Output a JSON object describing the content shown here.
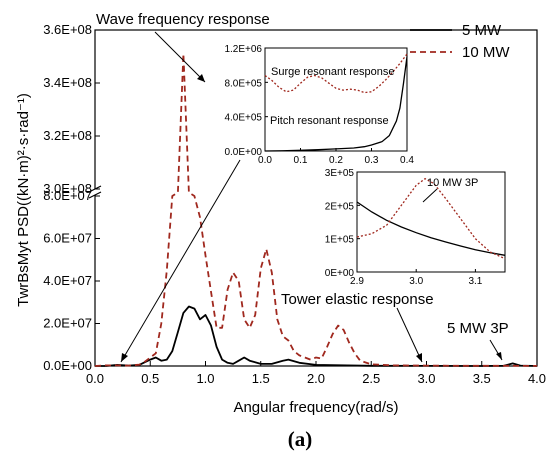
{
  "chart_data": [
    {
      "type": "line",
      "id": "main",
      "xlabel": "Angular frequency(rad/s)",
      "ylabel": "TwrBsMyt PSD((kN·m)²·s·rad⁻¹)",
      "xlim": [
        0,
        4
      ],
      "y_axis_break": {
        "lower": [
          0,
          80000000
        ],
        "upper": [
          300000000,
          360000000
        ]
      },
      "x_ticks": [
        "0.0",
        "0.5",
        "1.0",
        "1.5",
        "2.0",
        "2.5",
        "3.0",
        "3.5",
        "4.0"
      ],
      "y_ticks_lower": [
        "0.0E+00",
        "2.0E+07",
        "4.0E+07",
        "6.0E+07",
        "8.0E+07"
      ],
      "y_ticks_upper": [
        "3.0E+08",
        "3.2E+08",
        "3.4E+08",
        "3.6E+08"
      ],
      "legend": {
        "placement": "top-right",
        "entries": [
          "5 MW",
          "10 MW"
        ]
      },
      "series": [
        {
          "name": "5 MW",
          "style": "solid",
          "color": "#000000",
          "points": [
            [
              0,
              0
            ],
            [
              0.1,
              0
            ],
            [
              0.2,
              500000
            ],
            [
              0.3,
              200000
            ],
            [
              0.4,
              500000
            ],
            [
              0.5,
              3000000
            ],
            [
              0.55,
              4000000
            ],
            [
              0.6,
              2500000
            ],
            [
              0.65,
              3000000
            ],
            [
              0.7,
              7000000
            ],
            [
              0.75,
              16000000
            ],
            [
              0.8,
              25000000
            ],
            [
              0.85,
              28000000
            ],
            [
              0.9,
              27000000
            ],
            [
              0.95,
              22000000
            ],
            [
              1.0,
              24000000
            ],
            [
              1.05,
              19000000
            ],
            [
              1.1,
              9000000
            ],
            [
              1.15,
              3000000
            ],
            [
              1.2,
              1500000
            ],
            [
              1.25,
              1000000
            ],
            [
              1.3,
              2500000
            ],
            [
              1.35,
              4000000
            ],
            [
              1.4,
              2500000
            ],
            [
              1.5,
              1000000
            ],
            [
              1.6,
              1000000
            ],
            [
              1.7,
              2500000
            ],
            [
              1.75,
              3000000
            ],
            [
              1.85,
              1500000
            ],
            [
              2.0,
              500000
            ],
            [
              2.5,
              100000
            ],
            [
              3.0,
              50000
            ],
            [
              3.5,
              20000
            ],
            [
              3.7,
              100000
            ],
            [
              3.78,
              1200000
            ],
            [
              3.85,
              200000
            ],
            [
              4.0,
              20000
            ]
          ]
        },
        {
          "name": "10 MW",
          "style": "dashed",
          "color": "#a0281e",
          "points": [
            [
              0,
              0
            ],
            [
              0.1,
              300000
            ],
            [
              0.2,
              300000
            ],
            [
              0.3,
              200000
            ],
            [
              0.4,
              600000
            ],
            [
              0.45,
              2000000
            ],
            [
              0.5,
              4000000
            ],
            [
              0.55,
              6000000
            ],
            [
              0.6,
              20000000
            ],
            [
              0.65,
              45000000
            ],
            [
              0.7,
              80000000
            ],
            [
              0.75,
              240000000
            ],
            [
              0.8,
              351000000
            ],
            [
              0.85,
              250000000
            ],
            [
              0.9,
              80000000
            ],
            [
              0.95,
              70000000
            ],
            [
              1.0,
              52000000
            ],
            [
              1.05,
              35000000
            ],
            [
              1.1,
              18000000
            ],
            [
              1.15,
              18000000
            ],
            [
              1.2,
              36000000
            ],
            [
              1.25,
              44000000
            ],
            [
              1.3,
              40000000
            ],
            [
              1.35,
              22000000
            ],
            [
              1.4,
              18000000
            ],
            [
              1.45,
              24000000
            ],
            [
              1.5,
              46000000
            ],
            [
              1.55,
              55000000
            ],
            [
              1.6,
              44000000
            ],
            [
              1.65,
              22000000
            ],
            [
              1.7,
              14000000
            ],
            [
              1.75,
              12000000
            ],
            [
              1.8,
              7000000
            ],
            [
              1.85,
              5000000
            ],
            [
              1.9,
              4000000
            ],
            [
              1.95,
              3000000
            ],
            [
              2.0,
              4000000
            ],
            [
              2.05,
              3500000
            ],
            [
              2.1,
              9000000
            ],
            [
              2.15,
              15000000
            ],
            [
              2.2,
              19000000
            ],
            [
              2.25,
              17000000
            ],
            [
              2.3,
              11000000
            ],
            [
              2.35,
              6000000
            ],
            [
              2.4,
              2500000
            ],
            [
              2.5,
              800000
            ],
            [
              2.7,
              300000
            ],
            [
              3.0,
              200000
            ],
            [
              3.3,
              100000
            ],
            [
              3.7,
              100000
            ],
            [
              4.0,
              50000
            ]
          ]
        }
      ],
      "annotations": [
        "Wave frequency response",
        "Tower elastic response",
        "5 MW 3P"
      ]
    },
    {
      "type": "line",
      "id": "inset_low_frequency",
      "xlim": [
        0.0,
        0.4
      ],
      "ylim": [
        0,
        1200000
      ],
      "x_ticks": [
        "0.0",
        "0.1",
        "0.2",
        "0.3",
        "0.4"
      ],
      "y_ticks": [
        "0.0E+00",
        "4.0E+05",
        "8.0E+05",
        "1.2E+06"
      ],
      "series": [
        {
          "name": "5 MW",
          "style": "solid",
          "color": "#000000",
          "points": [
            [
              0.0,
              0
            ],
            [
              0.05,
              2000
            ],
            [
              0.1,
              8000
            ],
            [
              0.15,
              15000
            ],
            [
              0.2,
              25000
            ],
            [
              0.25,
              35000
            ],
            [
              0.28,
              50000
            ],
            [
              0.3,
              70000
            ],
            [
              0.33,
              110000
            ],
            [
              0.35,
              180000
            ],
            [
              0.37,
              350000
            ],
            [
              0.38,
              500000
            ],
            [
              0.39,
              780000
            ],
            [
              0.4,
              1100000
            ]
          ]
        },
        {
          "name": "10 MW",
          "style": "dotted",
          "color": "#a0281e",
          "points": [
            [
              0.0,
              880000
            ],
            [
              0.02,
              820000
            ],
            [
              0.04,
              740000
            ],
            [
              0.06,
              690000
            ],
            [
              0.08,
              710000
            ],
            [
              0.1,
              790000
            ],
            [
              0.12,
              860000
            ],
            [
              0.14,
              880000
            ],
            [
              0.16,
              850000
            ],
            [
              0.18,
              790000
            ],
            [
              0.2,
              730000
            ],
            [
              0.22,
              710000
            ],
            [
              0.24,
              720000
            ],
            [
              0.26,
              710000
            ],
            [
              0.28,
              680000
            ],
            [
              0.3,
              690000
            ],
            [
              0.32,
              750000
            ],
            [
              0.34,
              830000
            ],
            [
              0.36,
              920000
            ],
            [
              0.38,
              1020000
            ],
            [
              0.4,
              1130000
            ]
          ]
        }
      ],
      "annotations": [
        "Surge resonant response",
        "Pitch resonant response"
      ]
    },
    {
      "type": "line",
      "id": "inset_3p",
      "xlim": [
        2.9,
        3.15
      ],
      "ylim": [
        0,
        300000
      ],
      "x_ticks": [
        "2.9",
        "3.0",
        "3.1"
      ],
      "y_ticks": [
        "0E+00",
        "1E+05",
        "2E+05",
        "3E+05"
      ],
      "series": [
        {
          "name": "5 MW",
          "style": "solid",
          "color": "#000000",
          "points": [
            [
              2.9,
              210000
            ],
            [
              2.925,
              180000
            ],
            [
              2.95,
              155000
            ],
            [
              2.975,
              135000
            ],
            [
              3.0,
              118000
            ],
            [
              3.025,
              103000
            ],
            [
              3.05,
              90000
            ],
            [
              3.075,
              78000
            ],
            [
              3.1,
              67000
            ],
            [
              3.125,
              58000
            ],
            [
              3.15,
              50000
            ]
          ]
        },
        {
          "name": "10 MW",
          "style": "dotted",
          "color": "#a0281e",
          "points": [
            [
              2.9,
              105000
            ],
            [
              2.925,
              115000
            ],
            [
              2.95,
              140000
            ],
            [
              2.975,
              200000
            ],
            [
              3.0,
              260000
            ],
            [
              3.015,
              280000
            ],
            [
              3.03,
              265000
            ],
            [
              3.05,
              220000
            ],
            [
              3.075,
              160000
            ],
            [
              3.1,
              100000
            ],
            [
              3.125,
              60000
            ],
            [
              3.15,
              40000
            ]
          ]
        }
      ],
      "annotations": [
        "10 MW 3P"
      ]
    }
  ],
  "caption": "(a)"
}
